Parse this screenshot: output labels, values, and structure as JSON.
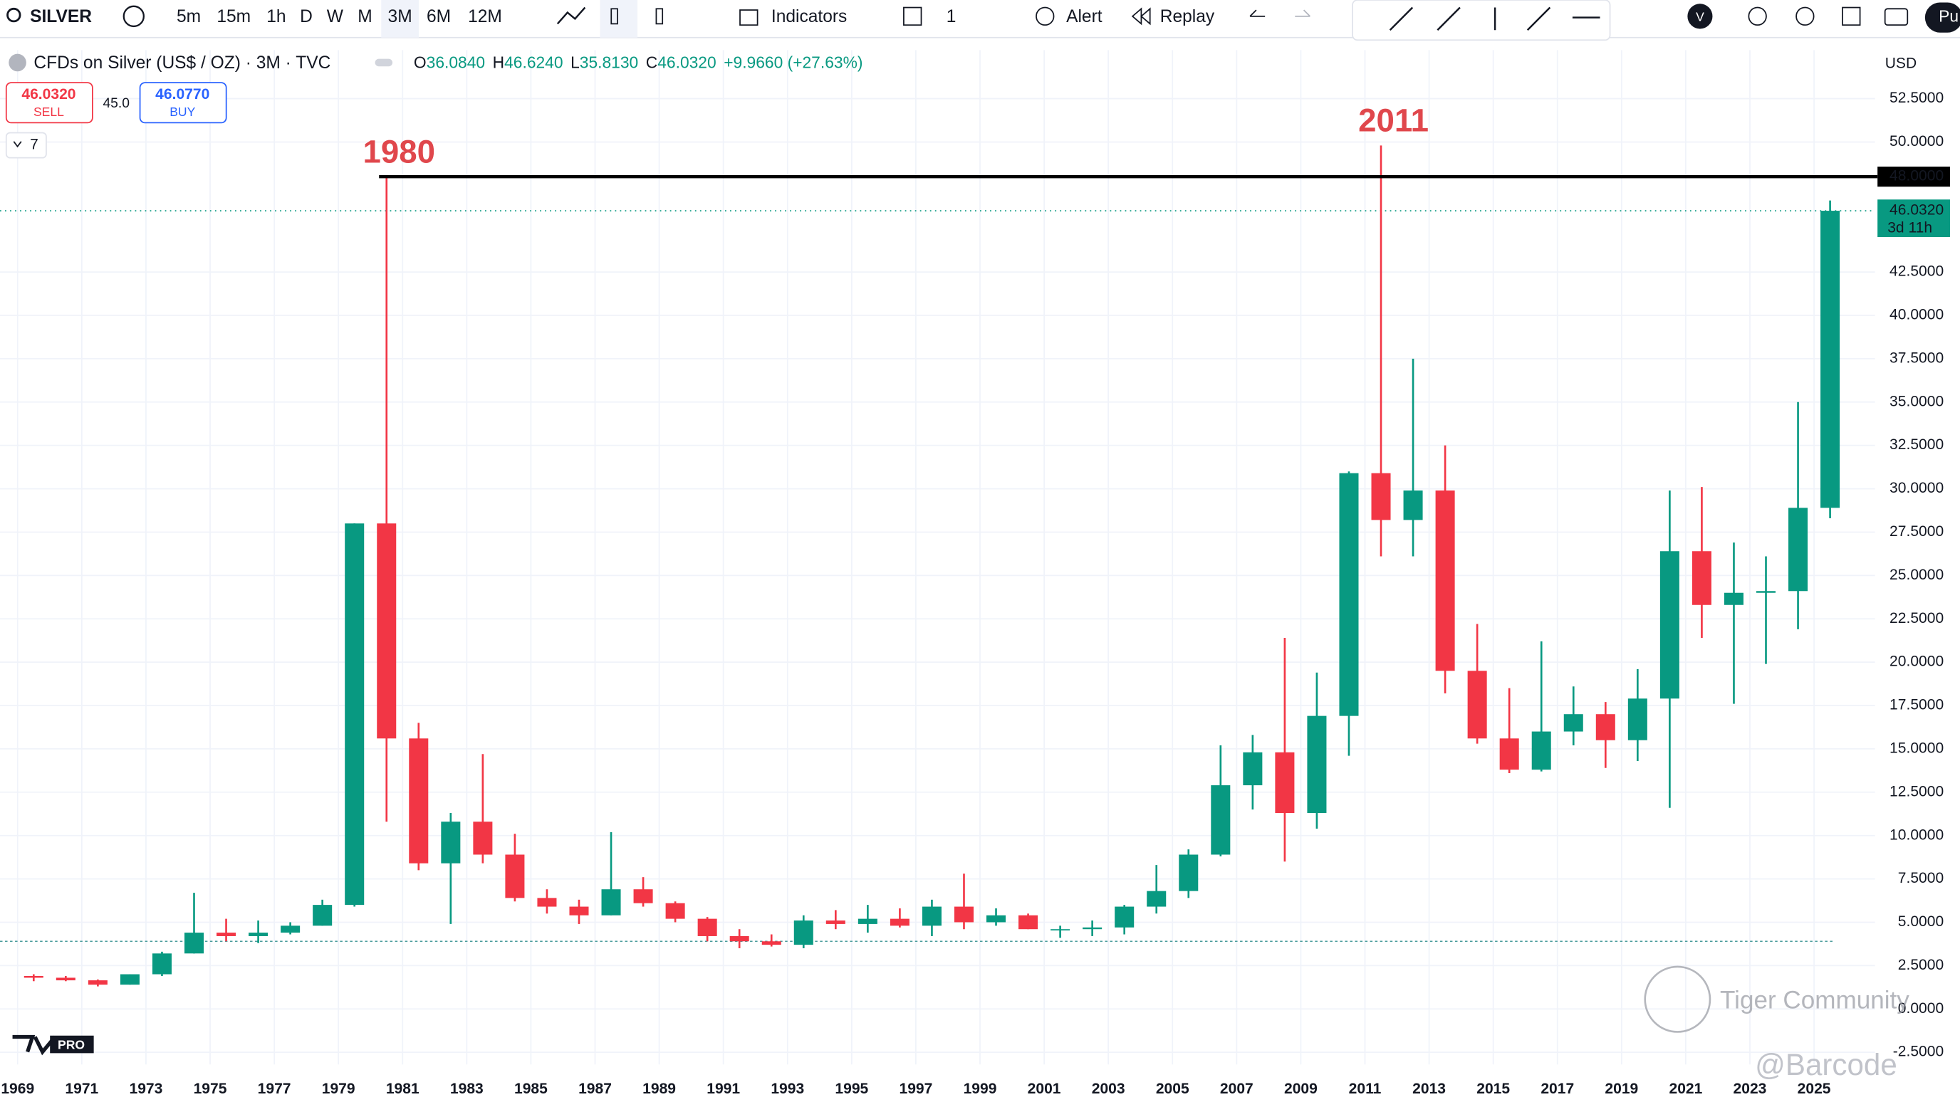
{
  "toolbar": {
    "symbol": "SILVER",
    "intervals": [
      "5m",
      "15m",
      "1h",
      "D",
      "W",
      "M",
      "3M",
      "6M",
      "12M"
    ],
    "indicators": "Indicators",
    "alert": "Alert",
    "replay": "Replay",
    "layout_count": "1",
    "user_initial": "V",
    "publish": "Pu"
  },
  "legend": {
    "symbol_name": "CFDs on Silver (US$ / OZ) · 3M · TVC",
    "open_label": "O",
    "open": "36.0840",
    "high_label": "H",
    "high": "46.6240",
    "low_label": "L",
    "low": "35.8130",
    "close_label": "C",
    "close": "46.0320",
    "change": "+9.9660 (+27.63%)"
  },
  "trade": {
    "sell_price": "46.0320",
    "sell_label": "SELL",
    "spread": "45.0",
    "buy_price": "46.0770",
    "buy_label": "BUY",
    "collapse": "7"
  },
  "currency": "USD",
  "logo": "PRO",
  "watermark": "Tiger Community",
  "credit": "@Barcode",
  "chart_data": {
    "type": "candlestick",
    "up_color": "#089981",
    "down_color": "#f23645",
    "x": [
      1969,
      1970,
      1971,
      1972,
      1973,
      1974,
      1975,
      1976,
      1977,
      1978,
      1979,
      1980,
      1981,
      1982,
      1983,
      1984,
      1985,
      1986,
      1987,
      1988,
      1989,
      1990,
      1991,
      1992,
      1993,
      1994,
      1995,
      1996,
      1997,
      1998,
      1999,
      2000,
      2001,
      2002,
      2003,
      2004,
      2005,
      2006,
      2007,
      2008,
      2009,
      2010,
      2011,
      2012,
      2013,
      2014,
      2015,
      2016,
      2017,
      2018,
      2019,
      2020,
      2021,
      2022,
      2023,
      2024,
      2025
    ],
    "open": [
      1.9,
      1.8,
      1.65,
      1.4,
      2.0,
      3.2,
      4.4,
      4.2,
      4.4,
      4.8,
      6.0,
      28,
      15.6,
      8.4,
      10.8,
      8.9,
      6.4,
      5.9,
      5.4,
      6.9,
      6.1,
      5.2,
      4.2,
      3.9,
      3.7,
      5.1,
      4.9,
      5.2,
      4.8,
      5.9,
      5.0,
      5.4,
      4.6,
      4.6,
      4.7,
      5.9,
      6.8,
      8.9,
      12.9,
      14.8,
      11.3,
      16.9,
      30.9,
      28.2,
      29.9,
      19.5,
      15.6,
      13.8,
      16.0,
      17.0,
      15.5,
      17.9,
      26.4,
      23.3,
      24.0,
      24.1,
      28.9
    ],
    "high": [
      2.0,
      1.9,
      1.7,
      2.0,
      3.3,
      6.7,
      5.2,
      5.1,
      5.0,
      6.3,
      28,
      48,
      16.5,
      11.3,
      14.7,
      10.1,
      6.9,
      6.3,
      10.2,
      7.6,
      6.2,
      5.3,
      4.6,
      4.3,
      5.4,
      5.7,
      6.0,
      5.8,
      6.3,
      7.8,
      5.8,
      5.5,
      4.8,
      5.1,
      6.0,
      8.3,
      9.2,
      15.2,
      15.8,
      21.4,
      19.4,
      31.0,
      49.8,
      37.5,
      32.5,
      22.2,
      18.5,
      21.2,
      18.6,
      17.7,
      19.6,
      29.9,
      30.1,
      26.9,
      26.1,
      35.0,
      46.624
    ],
    "low": [
      1.6,
      1.6,
      1.3,
      1.4,
      1.9,
      3.2,
      3.9,
      3.8,
      4.3,
      4.8,
      5.9,
      10.8,
      8.0,
      4.9,
      8.4,
      6.2,
      5.5,
      4.9,
      5.4,
      5.9,
      5.0,
      3.9,
      3.5,
      3.6,
      3.5,
      4.6,
      4.4,
      4.7,
      4.2,
      4.6,
      4.8,
      4.6,
      4.1,
      4.2,
      4.3,
      5.5,
      6.4,
      8.8,
      11.5,
      8.5,
      10.4,
      14.6,
      26.1,
      26.1,
      18.2,
      15.3,
      13.6,
      13.7,
      15.2,
      13.9,
      14.3,
      11.6,
      21.4,
      17.6,
      19.9,
      21.9,
      28.3
    ],
    "close": [
      1.8,
      1.65,
      1.4,
      2.0,
      3.2,
      4.4,
      4.2,
      4.4,
      4.8,
      6.0,
      28,
      15.6,
      8.4,
      10.8,
      8.9,
      6.4,
      5.9,
      5.4,
      6.9,
      6.1,
      5.2,
      4.2,
      3.9,
      3.7,
      5.1,
      4.9,
      5.2,
      4.8,
      5.9,
      5.0,
      5.4,
      4.6,
      4.6,
      4.7,
      5.9,
      6.8,
      8.9,
      12.9,
      14.8,
      11.3,
      16.9,
      30.9,
      28.2,
      29.9,
      19.5,
      15.6,
      13.8,
      16.0,
      17.0,
      15.5,
      17.9,
      26.4,
      23.3,
      24.0,
      24.1,
      28.9,
      46.032
    ],
    "xlim": [
      1968.45,
      2026.9
    ],
    "ylim": [
      -3.2,
      55.3
    ],
    "xticks": [
      1969,
      1971,
      1973,
      1975,
      1977,
      1979,
      1981,
      1983,
      1985,
      1987,
      1989,
      1991,
      1993,
      1995,
      1997,
      1999,
      2001,
      2003,
      2005,
      2007,
      2009,
      2011,
      2013,
      2015,
      2017,
      2019,
      2021,
      2023,
      2025
    ],
    "yticks": [
      {
        "value": -2.5,
        "label": "-2.5000"
      },
      {
        "value": 0,
        "label": "0.0000"
      },
      {
        "value": 2.5,
        "label": "2.5000"
      },
      {
        "value": 5,
        "label": "5.0000"
      },
      {
        "value": 7.5,
        "label": "7.5000"
      },
      {
        "value": 10,
        "label": "10.0000"
      },
      {
        "value": 12.5,
        "label": "12.5000"
      },
      {
        "value": 15,
        "label": "15.0000"
      },
      {
        "value": 17.5,
        "label": "17.5000"
      },
      {
        "value": 20,
        "label": "20.0000"
      },
      {
        "value": 22.5,
        "label": "22.5000"
      },
      {
        "value": 25,
        "label": "25.0000"
      },
      {
        "value": 27.5,
        "label": "27.5000"
      },
      {
        "value": 30,
        "label": "30.0000"
      },
      {
        "value": 32.5,
        "label": "32.5000"
      },
      {
        "value": 35,
        "label": "35.0000"
      },
      {
        "value": 37.5,
        "label": "37.5000"
      },
      {
        "value": 40,
        "label": "40.0000"
      },
      {
        "value": 42.5,
        "label": "42.5000"
      },
      {
        "value": 50,
        "label": "50.0000"
      },
      {
        "value": 52.5,
        "label": "52.5000"
      }
    ],
    "grid": true,
    "horizontal_line": {
      "value": 48,
      "label": "48.0000"
    },
    "last_price": {
      "value": 46.032,
      "label": "46.0320",
      "countdown": "3d 11h"
    },
    "dashed_level": 3.9,
    "annotations": [
      {
        "text": "1980",
        "x": 1980
      },
      {
        "text": "2011",
        "x": 2011
      }
    ]
  }
}
